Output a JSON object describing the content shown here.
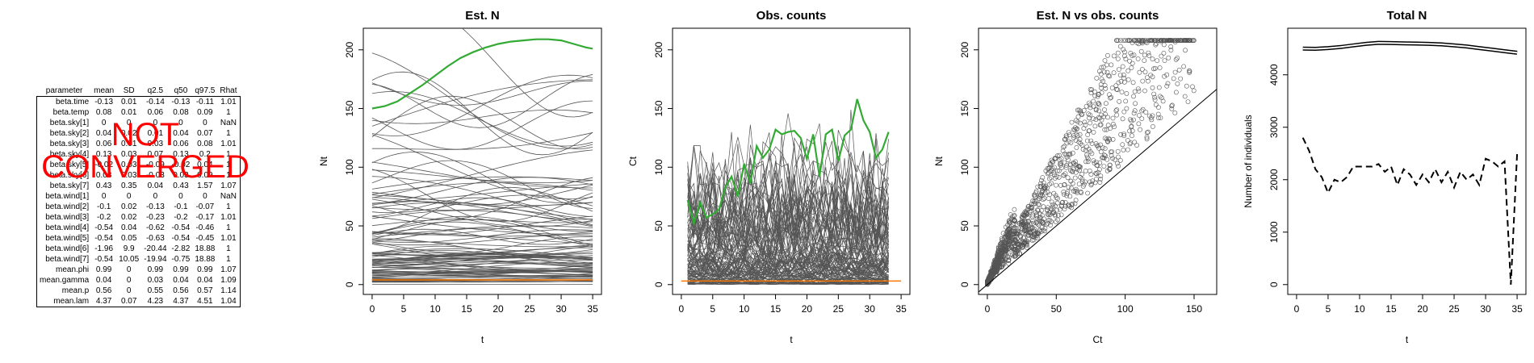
{
  "param_table": {
    "banner_line1": "NOT",
    "banner_line2": "CONVERGED",
    "banner_color": "#ff0000",
    "headers": [
      "parameter",
      "mean",
      "SD",
      "q2.5",
      "q50",
      "q97.5",
      "Rhat"
    ],
    "rows": [
      [
        "beta.time",
        "-0.13",
        "0.01",
        "-0.14",
        "-0.13",
        "-0.11",
        "1.01"
      ],
      [
        "beta.temp",
        "0.08",
        "0.01",
        "0.06",
        "0.08",
        "0.09",
        "1"
      ],
      [
        "beta.sky[1]",
        "0",
        "0",
        "0",
        "0",
        "0",
        "NaN"
      ],
      [
        "beta.sky[2]",
        "0.04",
        "0.02",
        "0.01",
        "0.04",
        "0.07",
        "1"
      ],
      [
        "beta.sky[3]",
        "0.06",
        "0.01",
        "0.03",
        "0.06",
        "0.08",
        "1.01"
      ],
      [
        "beta.sky[4]",
        "0.13",
        "0.03",
        "0.07",
        "0.13",
        "0.2",
        "1"
      ],
      [
        "beta.sky[5]",
        "-0.02",
        "0.03",
        "-0.09",
        "-0.02",
        "0.04",
        "1"
      ],
      [
        "beta.sky[6]",
        "0.03",
        "0.03",
        "-0.03",
        "0.03",
        "0.09",
        "1"
      ],
      [
        "beta.sky[7]",
        "0.43",
        "0.35",
        "0.04",
        "0.43",
        "1.57",
        "1.07"
      ],
      [
        "beta.wind[1]",
        "0",
        "0",
        "0",
        "0",
        "0",
        "NaN"
      ],
      [
        "beta.wind[2]",
        "-0.1",
        "0.02",
        "-0.13",
        "-0.1",
        "-0.07",
        "1"
      ],
      [
        "beta.wind[3]",
        "-0.2",
        "0.02",
        "-0.23",
        "-0.2",
        "-0.17",
        "1.01"
      ],
      [
        "beta.wind[4]",
        "-0.54",
        "0.04",
        "-0.62",
        "-0.54",
        "-0.46",
        "1"
      ],
      [
        "beta.wind[5]",
        "-0.54",
        "0.05",
        "-0.63",
        "-0.54",
        "-0.45",
        "1.01"
      ],
      [
        "beta.wind[6]",
        "-1.96",
        "9.9",
        "-20.44",
        "-2.82",
        "18.88",
        "1"
      ],
      [
        "beta.wind[7]",
        "-0.54",
        "10.05",
        "-19.94",
        "-0.75",
        "18.88",
        "1"
      ],
      [
        "mean.phi",
        "0.99",
        "0",
        "0.99",
        "0.99",
        "0.99",
        "1.07"
      ],
      [
        "mean.gamma",
        "0.04",
        "0",
        "0.03",
        "0.04",
        "0.04",
        "1.09"
      ],
      [
        "mean.p",
        "0.56",
        "0",
        "0.55",
        "0.56",
        "0.57",
        "1.14"
      ],
      [
        "mean.lam",
        "4.37",
        "0.07",
        "4.23",
        "4.37",
        "4.51",
        "1.04"
      ]
    ]
  },
  "chart_data": [
    {
      "type": "line",
      "title": "Est. N",
      "xlabel": "t",
      "ylabel": "Nt",
      "xlim": [
        0,
        35
      ],
      "ylim": [
        0,
        210
      ],
      "xticks": [
        0,
        5,
        10,
        15,
        20,
        25,
        30,
        35
      ],
      "yticks": [
        0,
        50,
        100,
        150,
        200
      ],
      "colors": {
        "lines": "#555555",
        "highlight": "#33aa33",
        "baseline": "#ff7700"
      },
      "highlight": {
        "x": [
          0,
          2,
          4,
          6,
          8,
          10,
          12,
          14,
          16,
          18,
          20,
          22,
          24,
          26,
          28,
          30,
          32,
          34,
          35
        ],
        "y": [
          150,
          152,
          156,
          163,
          170,
          178,
          186,
          193,
          198,
          202,
          205,
          207,
          208,
          209,
          209,
          208,
          205,
          202,
          201
        ]
      },
      "baseline_y": 4
    },
    {
      "type": "line",
      "title": "Obs. counts",
      "xlabel": "t",
      "ylabel": "Ct",
      "xlim": [
        0,
        35
      ],
      "ylim": [
        0,
        210
      ],
      "xticks": [
        0,
        5,
        10,
        15,
        20,
        25,
        30,
        35
      ],
      "yticks": [
        0,
        50,
        100,
        150,
        200
      ],
      "colors": {
        "lines": "#555555",
        "highlight": "#33aa33",
        "baseline": "#ff7700"
      },
      "highlight": {
        "x": [
          1,
          2,
          3,
          4,
          5,
          6,
          7,
          8,
          9,
          10,
          11,
          12,
          13,
          14,
          15,
          16,
          17,
          18,
          19,
          20,
          21,
          22,
          23,
          24,
          25,
          26,
          27,
          28,
          29,
          30,
          31,
          32,
          33
        ],
        "y": [
          72,
          52,
          70,
          57,
          60,
          64,
          83,
          92,
          75,
          103,
          86,
          118,
          108,
          115,
          132,
          128,
          130,
          131,
          125,
          107,
          128,
          92,
          128,
          132,
          105,
          127,
          132,
          158,
          140,
          130,
          108,
          115,
          130
        ]
      },
      "baseline_y": 3
    },
    {
      "type": "scatter",
      "title": "Est. N vs obs. counts",
      "xlabel": "Ct",
      "ylabel": "Nt",
      "xlim": [
        0,
        160
      ],
      "ylim": [
        0,
        210
      ],
      "xticks": [
        0,
        50,
        100,
        150
      ],
      "yticks": [
        0,
        50,
        100,
        150,
        200
      ],
      "reference_line": "y = x"
    },
    {
      "type": "line",
      "title": "Total N",
      "xlabel": "t",
      "ylabel": "Number of individuals",
      "xlim": [
        0,
        35
      ],
      "ylim": [
        0,
        4700
      ],
      "xticks": [
        0,
        5,
        10,
        15,
        20,
        25,
        30,
        35
      ],
      "yticks": [
        0,
        1000,
        2000,
        3000,
        4000
      ],
      "series": [
        {
          "style": "solid",
          "x": [
            1,
            3,
            5,
            7,
            9,
            11,
            13,
            15,
            17,
            19,
            21,
            23,
            25,
            27,
            29,
            31,
            33,
            35
          ],
          "y": [
            4500,
            4495,
            4510,
            4530,
            4560,
            4590,
            4610,
            4605,
            4600,
            4595,
            4590,
            4580,
            4560,
            4540,
            4510,
            4480,
            4450,
            4420
          ]
        },
        {
          "style": "dashed",
          "x": [
            1,
            2,
            3,
            4,
            5,
            6,
            7,
            8,
            9,
            10,
            11,
            12,
            13,
            14,
            15,
            16,
            17,
            18,
            19,
            20,
            21,
            22,
            23,
            24,
            25,
            26,
            27,
            28,
            29,
            30,
            31,
            32,
            33,
            34,
            35
          ],
          "y": [
            2800,
            2550,
            2200,
            2050,
            1750,
            2000,
            1950,
            2050,
            2250,
            2250,
            2250,
            2250,
            2300,
            2150,
            2250,
            1900,
            2200,
            2100,
            1900,
            2100,
            1950,
            2200,
            1950,
            2150,
            1850,
            2150,
            2000,
            2100,
            1900,
            2400,
            2350,
            2250,
            2350,
            0,
            2500
          ]
        }
      ]
    }
  ]
}
